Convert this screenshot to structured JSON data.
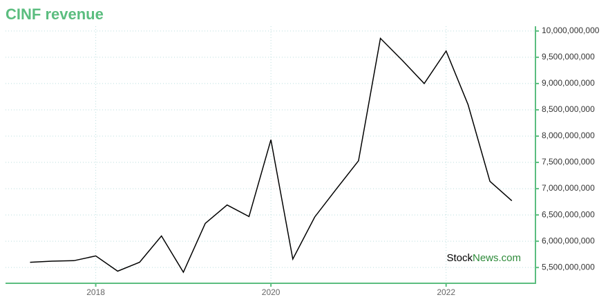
{
  "chart_data": {
    "type": "line",
    "title": "CINF revenue",
    "x": [
      2017.25,
      2017.5,
      2017.75,
      2018.0,
      2018.25,
      2018.5,
      2018.75,
      2019.0,
      2019.25,
      2019.5,
      2019.75,
      2020.0,
      2020.25,
      2020.5,
      2020.75,
      2021.0,
      2021.25,
      2021.5,
      2021.75,
      2022.0,
      2022.25,
      2022.5,
      2022.75
    ],
    "series": [
      {
        "color": "#000000",
        "values": [
          5600000000,
          5620000000,
          5630000000,
          5720000000,
          5430000000,
          5600000000,
          6100000000,
          5410000000,
          6340000000,
          6690000000,
          6470000000,
          7930000000,
          5660000000,
          6460000000,
          7000000000,
          7530000000,
          9860000000,
          9440000000,
          9000000000,
          9620000000,
          8600000000,
          7140000000,
          6770000000
        ]
      }
    ],
    "xlim": [
      2016.97,
      2023.02
    ],
    "xticks": [
      2018,
      2020,
      2022
    ],
    "ylim": [
      5200000000,
      10090000000
    ],
    "yticks": [
      {
        "value": 5500000000,
        "label": "5,500,000,000"
      },
      {
        "value": 6000000000,
        "label": "6,000,000,000"
      },
      {
        "value": 6500000000,
        "label": "6,500,000,000"
      },
      {
        "value": 7000000000,
        "label": "7,000,000,000"
      },
      {
        "value": 7500000000,
        "label": "7,500,000,000"
      },
      {
        "value": 8000000000,
        "label": "8,000,000,000"
      },
      {
        "value": 8500000000,
        "label": "8,500,000,000"
      },
      {
        "value": 9000000000,
        "label": "9,000,000,000"
      },
      {
        "value": 9500000000,
        "label": "9,500,000,000"
      },
      {
        "value": 10000000000,
        "label": "10,000,000,000"
      }
    ],
    "grid": true,
    "axis_color": "#5bbd7f",
    "watermark": [
      "Stock",
      "News.com"
    ]
  }
}
